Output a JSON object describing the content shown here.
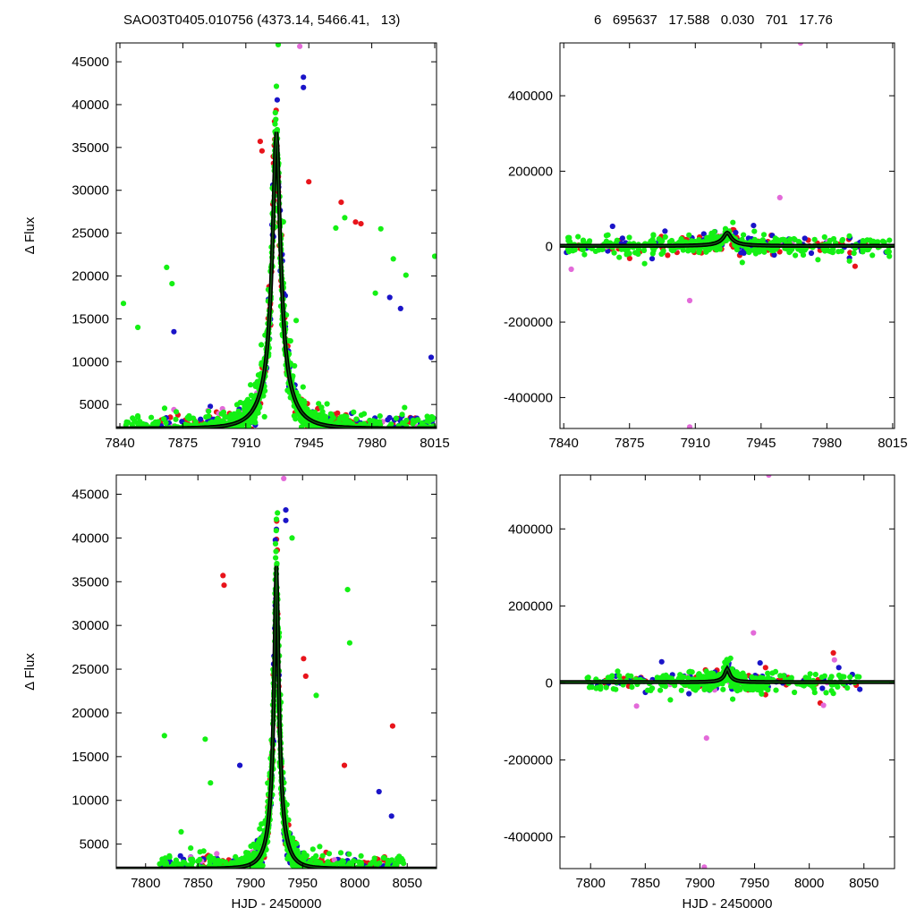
{
  "header": {
    "left": "SAO03T0405.010756 (4373.14, 5466.41,   13)",
    "right": "6   695637   17.588   0.030   701   17.76"
  },
  "colors": {
    "red": "#e8141b",
    "blue": "#1a14c8",
    "green": "#14f014",
    "magenta": "#e36ad9",
    "model": "#000000",
    "model_inner": "#0f5a0f"
  },
  "chart_data": [
    {
      "id": "top-left",
      "type": "scatter",
      "title": "",
      "xlabel": "",
      "ylabel": "Δ Flux",
      "xlim": [
        7838,
        8016
      ],
      "ylim": [
        2200,
        47200
      ],
      "xticks": [
        7840,
        7875,
        7910,
        7945,
        7980,
        8015
      ],
      "yticks": [
        5000,
        10000,
        15000,
        20000,
        25000,
        30000,
        35000,
        40000,
        45000
      ],
      "model": {
        "t0": 7927,
        "peak": 36800,
        "base": 2200,
        "u0": 0.134,
        "tE": 14.5
      },
      "series": [
        {
          "color": "green",
          "x_range": [
            7842,
            8015
          ],
          "spread": 0.22,
          "n": 700,
          "outliers": [
            [
              7842,
              16800
            ],
            [
              7928,
              47000
            ],
            [
              7938,
              14800
            ],
            [
              7960,
              25600
            ],
            [
              7985,
              25500
            ],
            [
              7999,
              20100
            ],
            [
              8015,
              22300
            ],
            [
              7965,
              26800
            ],
            [
              7866,
              21000
            ],
            [
              7869,
              19100
            ],
            [
              7850,
              14000
            ],
            [
              7992,
              22000
            ],
            [
              7982,
              18000
            ]
          ]
        },
        {
          "color": "red",
          "x_range": [
            7860,
            8010
          ],
          "spread": 0.15,
          "n": 260,
          "outliers": [
            [
              7918,
              35700
            ],
            [
              7919,
              34600
            ],
            [
              7963,
              28600
            ],
            [
              7971,
              26300
            ],
            [
              7974,
              26100
            ],
            [
              7945,
              31000
            ]
          ]
        },
        {
          "color": "blue",
          "x_range": [
            7848,
            8015
          ],
          "spread": 0.14,
          "n": 200,
          "outliers": [
            [
              7942,
              43200
            ],
            [
              7942,
              42000
            ],
            [
              7870,
              13500
            ],
            [
              7990,
              17500
            ],
            [
              7996,
              16200
            ],
            [
              8013,
              10500
            ]
          ]
        },
        {
          "color": "magenta",
          "x_range": [
            7850,
            8010
          ],
          "spread": 0.1,
          "n": 18,
          "outliers": [
            [
              7940,
              46800
            ],
            [
              7870,
              4400
            ],
            [
              7889,
              4300
            ],
            [
              7897,
              4500
            ],
            [
              7986,
              3000
            ]
          ]
        }
      ]
    },
    {
      "id": "top-right",
      "type": "scatter",
      "title": "",
      "xlabel": "",
      "ylabel": "",
      "xlim": [
        7838,
        8016
      ],
      "ylim": [
        -482000,
        540000
      ],
      "xticks": [
        7840,
        7875,
        7910,
        7945,
        7980,
        8015
      ],
      "yticks": [
        -400000,
        -200000,
        0,
        200000,
        400000
      ],
      "model": {
        "t0": 7927,
        "peak": 36800,
        "base": 2200,
        "u0": 0.134,
        "tE": 14.5
      },
      "series": [
        {
          "color": "green",
          "x_range": [
            7840,
            8015
          ],
          "spread": 0.35,
          "n": 380,
          "outliers": [
            [
              7930,
              64000
            ],
            [
              7883,
              -45000
            ],
            [
              7935,
              -42000
            ],
            [
              7992,
              -38000
            ]
          ]
        },
        {
          "color": "red",
          "x_range": [
            7840,
            8010
          ],
          "spread": 0.3,
          "n": 90,
          "outliers": [
            [
              7995,
              -52000
            ],
            [
              7930,
              45000
            ]
          ]
        },
        {
          "color": "blue",
          "x_range": [
            7840,
            8015
          ],
          "spread": 0.3,
          "n": 90,
          "outliers": [
            [
              7866,
              54000
            ],
            [
              7887,
              -32000
            ],
            [
              7941,
              56000
            ],
            [
              7952,
              -22000
            ],
            [
              7992,
              -30000
            ]
          ]
        },
        {
          "color": "magenta",
          "x_range": [
            7845,
            8010
          ],
          "spread": 0.2,
          "n": 14,
          "outliers": [
            [
              7844,
              -60000
            ],
            [
              7907,
              -143000
            ],
            [
              7907,
              -478000
            ],
            [
              7955,
              130000
            ],
            [
              7966,
              540000
            ]
          ]
        }
      ]
    },
    {
      "id": "bottom-left",
      "type": "scatter",
      "title": "",
      "xlabel": "HJD - 2450000",
      "ylabel": "Δ Flux",
      "xlim": [
        7772,
        8078
      ],
      "ylim": [
        2200,
        47200
      ],
      "xticks": [
        7800,
        7850,
        7900,
        7950,
        8000,
        8050
      ],
      "yticks": [
        5000,
        10000,
        15000,
        20000,
        25000,
        30000,
        35000,
        40000,
        45000
      ],
      "model": {
        "t0": 7925,
        "peak": 36800,
        "base": 2200,
        "u0": 0.134,
        "tE": 14.5
      },
      "series": [
        {
          "color": "green",
          "x_range": [
            7812,
            8048
          ],
          "spread": 0.22,
          "n": 680,
          "outliers": [
            [
              7818,
              17400
            ],
            [
              7834,
              6400
            ],
            [
              7940,
              40000
            ],
            [
              7993,
              34100
            ],
            [
              7995,
              28000
            ],
            [
              7963,
              22000
            ],
            [
              7857,
              17000
            ],
            [
              7862,
              12000
            ]
          ]
        },
        {
          "color": "red",
          "x_range": [
            7850,
            8040
          ],
          "spread": 0.15,
          "n": 240,
          "outliers": [
            [
              7874,
              35700
            ],
            [
              7875,
              34600
            ],
            [
              7951,
              26200
            ],
            [
              7953,
              24200
            ],
            [
              8036,
              18500
            ],
            [
              7990,
              14000
            ]
          ]
        },
        {
          "color": "blue",
          "x_range": [
            7810,
            8045
          ],
          "spread": 0.14,
          "n": 190,
          "outliers": [
            [
              7934,
              43200
            ],
            [
              7934,
              42000
            ],
            [
              7890,
              14000
            ],
            [
              8023,
              11000
            ],
            [
              8035,
              8200
            ],
            [
              7816,
              2700
            ]
          ]
        },
        {
          "color": "magenta",
          "x_range": [
            7830,
            8040
          ],
          "spread": 0.1,
          "n": 16,
          "outliers": [
            [
              7932,
              46800
            ],
            [
              7843,
              3500
            ],
            [
              7868,
              3900
            ],
            [
              7902,
              4100
            ],
            [
              8032,
              3000
            ]
          ]
        }
      ]
    },
    {
      "id": "bottom-right",
      "type": "scatter",
      "title": "",
      "xlabel": "HJD - 2450000",
      "ylabel": "",
      "xlim": [
        7772,
        8078
      ],
      "ylim": [
        -482000,
        540000
      ],
      "xticks": [
        7800,
        7850,
        7900,
        7950,
        8000,
        8050
      ],
      "yticks": [
        -400000,
        -200000,
        0,
        200000,
        400000
      ],
      "model": {
        "t0": 7925,
        "peak": 36800,
        "base": 2200,
        "u0": 0.134,
        "tE": 14.5
      },
      "series": [
        {
          "color": "green",
          "x_range": [
            7795,
            8048
          ],
          "spread": 0.35,
          "n": 360,
          "outliers": [
            [
              7928,
              64000
            ],
            [
              7873,
              -44000
            ],
            [
              7930,
              -42000
            ],
            [
              8005,
              -25000
            ]
          ]
        },
        {
          "color": "red",
          "x_range": [
            7810,
            8045
          ],
          "spread": 0.3,
          "n": 85,
          "outliers": [
            [
              8022,
              78000
            ],
            [
              8010,
              -52000
            ],
            [
              7960,
              40000
            ]
          ]
        },
        {
          "color": "blue",
          "x_range": [
            7800,
            8048
          ],
          "spread": 0.3,
          "n": 85,
          "outliers": [
            [
              7865,
              55000
            ],
            [
              7890,
              -28000
            ],
            [
              7955,
              52000
            ],
            [
              8027,
              40000
            ]
          ]
        },
        {
          "color": "magenta",
          "x_range": [
            7830,
            8040
          ],
          "spread": 0.2,
          "n": 14,
          "outliers": [
            [
              7842,
              -60000
            ],
            [
              7906,
              -143000
            ],
            [
              7904,
              -478000
            ],
            [
              7949,
              130000
            ],
            [
              7963,
              540000
            ],
            [
              8023,
              60000
            ],
            [
              8013,
              -58000
            ]
          ]
        }
      ]
    }
  ]
}
